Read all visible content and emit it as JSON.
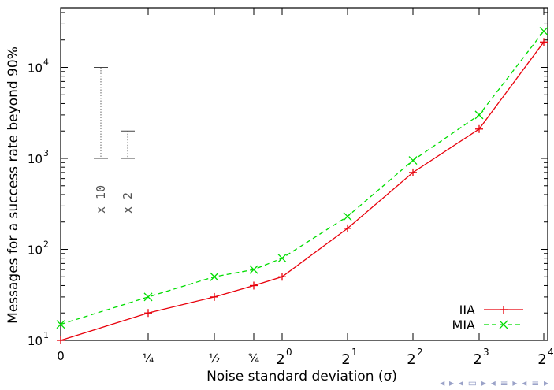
{
  "chart_data": {
    "type": "line",
    "xlabel": "Noise standard deviation (σ)",
    "ylabel": "Messages for a success rate beyond 90%",
    "x_tick_labels": [
      "0",
      "¼",
      "½",
      "¾",
      "2^0",
      "2^1",
      "2^2",
      "2^3",
      "2^4"
    ],
    "y_scale": "log",
    "y_tick_labels": [
      "10^1",
      "10^2",
      "10^3",
      "10^4"
    ],
    "ylim": [
      10,
      40000
    ],
    "legend_position": "bottom-right",
    "series": [
      {
        "name": "IIA",
        "color": "#e8000b",
        "marker": "plus",
        "dash": "solid",
        "x": [
          "0",
          "¼",
          "½",
          "¾",
          "2^0",
          "2^1",
          "2^2",
          "2^3",
          "2^4"
        ],
        "values": [
          10,
          20,
          30,
          40,
          50,
          170,
          700,
          2100,
          19000
        ]
      },
      {
        "name": "MIA",
        "color": "#00dd00",
        "marker": "x",
        "dash": "dashed",
        "x": [
          "0",
          "¼",
          "½",
          "¾",
          "2^0",
          "2^1",
          "2^2",
          "2^3",
          "2^4"
        ],
        "values": [
          15,
          30,
          50,
          60,
          80,
          230,
          950,
          3000,
          25000
        ]
      }
    ],
    "annotations": [
      {
        "label": "x 10",
        "from": 1000,
        "to": 10000
      },
      {
        "label": "x 2",
        "from": 1000,
        "to": 2000
      }
    ]
  }
}
